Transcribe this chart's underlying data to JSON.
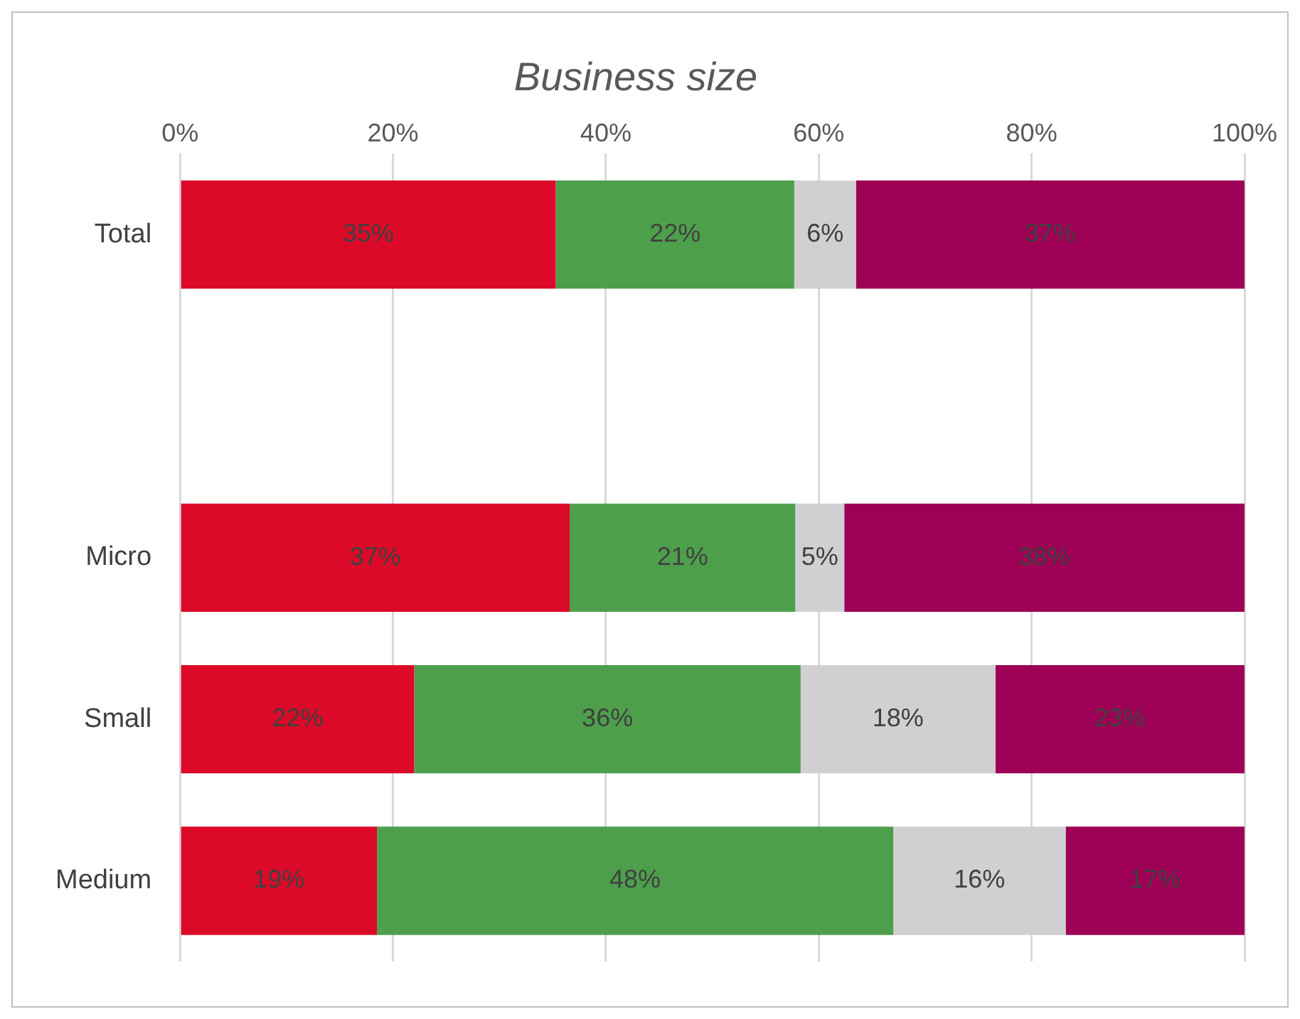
{
  "chart_data": {
    "type": "bar",
    "title": "Business size",
    "orientation": "horizontal",
    "stacked": true,
    "grid": "x",
    "legend": false,
    "categories": [
      "Total",
      null,
      "Micro",
      "Small",
      "Medium"
    ],
    "xlim": [
      0,
      100
    ],
    "xticks": [
      {
        "value": 0,
        "label": "0%"
      },
      {
        "value": 20,
        "label": "20%"
      },
      {
        "value": 40,
        "label": "40%"
      },
      {
        "value": 60,
        "label": "60%"
      },
      {
        "value": 80,
        "label": "80%"
      },
      {
        "value": 100,
        "label": "100%"
      }
    ],
    "series": [
      {
        "color": "#dc0a28",
        "values": [
          35.3,
          null,
          36.6,
          22.0,
          18.5
        ],
        "value_labels": [
          "35%",
          null,
          "37%",
          "22%",
          "19%"
        ]
      },
      {
        "color": "#4e9f4b",
        "values": [
          22.4,
          null,
          21.2,
          36.3,
          48.5
        ],
        "value_labels": [
          "22%",
          null,
          "21%",
          "36%",
          "48%"
        ]
      },
      {
        "color": "#d0d0d2",
        "values": [
          5.8,
          null,
          4.6,
          18.3,
          16.2
        ],
        "value_labels": [
          "6%",
          null,
          "5%",
          "18%",
          "16%"
        ]
      },
      {
        "color": "#9e0055",
        "values": [
          36.5,
          null,
          37.6,
          23.4,
          16.8
        ],
        "value_labels": [
          "37%",
          null,
          "38%",
          "23%",
          "17%"
        ]
      }
    ]
  }
}
